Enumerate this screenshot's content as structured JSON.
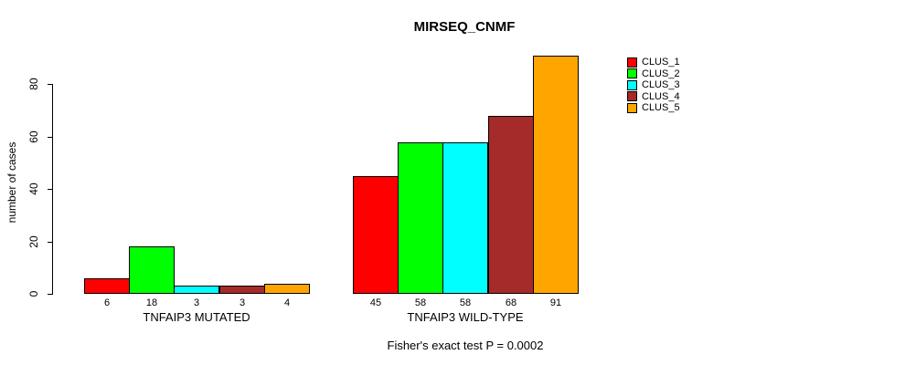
{
  "chart_data": {
    "type": "bar",
    "title": "MIRSEQ_CNMF",
    "ylabel": "number of cases",
    "xlabel": "",
    "ylim": [
      0,
      91
    ],
    "yticks": [
      0,
      20,
      40,
      60,
      80
    ],
    "grid": false,
    "legend_position": "right",
    "categories": [
      "TNFAIP3 MUTATED",
      "TNFAIP3 WILD-TYPE"
    ],
    "series": [
      {
        "name": "CLUS_1",
        "color": "#FF0000",
        "values": [
          6,
          45
        ]
      },
      {
        "name": "CLUS_2",
        "color": "#00FF00",
        "values": [
          18,
          58
        ]
      },
      {
        "name": "CLUS_3",
        "color": "#00FFFF",
        "values": [
          3,
          58
        ]
      },
      {
        "name": "CLUS_4",
        "color": "#A52A2A",
        "values": [
          3,
          68
        ]
      },
      {
        "name": "CLUS_5",
        "color": "#FFA500",
        "values": [
          4,
          91
        ]
      }
    ],
    "bar_value_labels": [
      [
        6,
        18,
        3,
        3,
        4
      ],
      [
        45,
        58,
        58,
        68,
        91
      ]
    ],
    "annotation": "Fisher's exact test P = 0.0002"
  }
}
